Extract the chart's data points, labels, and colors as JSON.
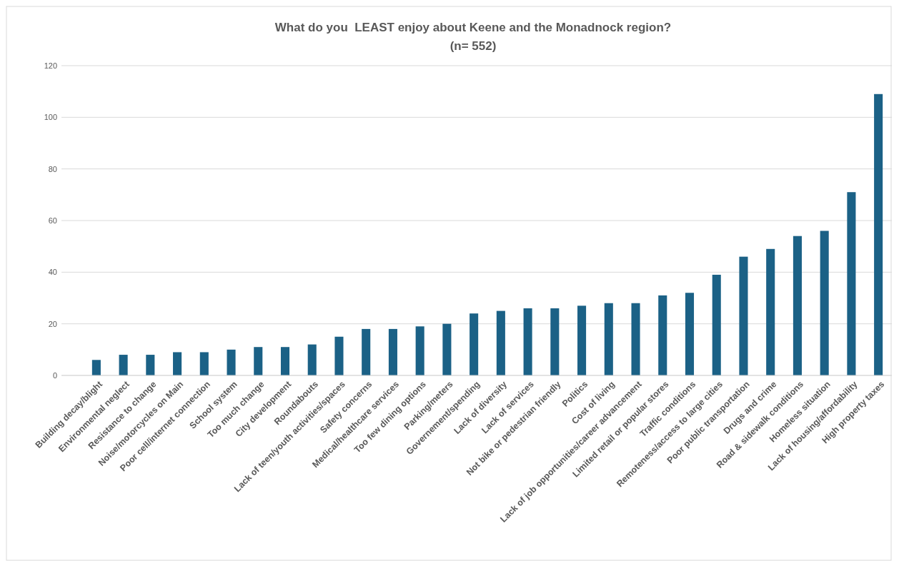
{
  "chart_data": {
    "type": "bar",
    "title": "What do you  LEAST enjoy about Keene and the Monadnock region?",
    "subtitle": "(n= 552)",
    "categories": [
      "Building decay/blight",
      "Environmental neglect",
      "Resistance to change",
      "Noise/motorcycles on Main",
      "Poor cell/internet connection",
      "School system",
      "Too much change",
      "City development",
      "Roundabouts",
      "Lack of teen/youth activities/spaces",
      "Safety concerns",
      "Medical/healthcare services",
      "Too few dining options",
      "Parking/meters",
      "Governement/spending",
      "Lack of diversity",
      "Lack of services",
      "Not bike or pedestrian friendly",
      "Politics",
      "Cost of living",
      "Lack of job opportunities/career advancement",
      "Limited retail or popular stores",
      "Traffic conditions",
      "Remoteness/access to large cities",
      "Poor public transportation",
      "Drugs and crime",
      "Road & sidewalk conditions",
      "Homeless situation",
      "Lack of housing/affordability",
      "High property taxes"
    ],
    "values": [
      6,
      8,
      8,
      9,
      9,
      10,
      11,
      11,
      12,
      15,
      18,
      18,
      19,
      20,
      24,
      25,
      26,
      26,
      27,
      28,
      28,
      31,
      32,
      39,
      46,
      49,
      54,
      56,
      71,
      109
    ],
    "color": "#1b6186",
    "ylim": [
      0,
      120
    ],
    "yticks": [
      0,
      20,
      40,
      60,
      80,
      100,
      120
    ],
    "grid": "y"
  }
}
